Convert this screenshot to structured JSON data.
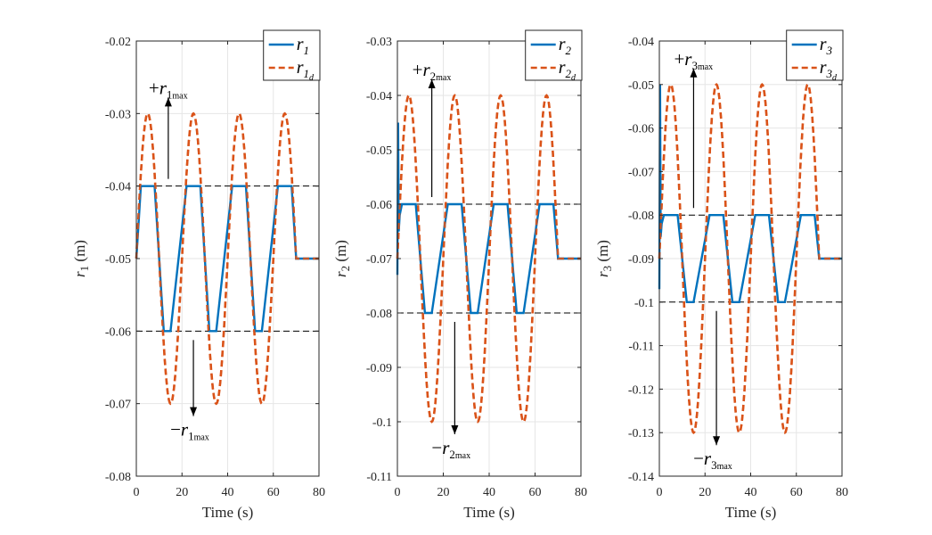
{
  "colors": {
    "actual": "#0072BD",
    "desired": "#D95319",
    "limit": "#000000",
    "grid": "#e6e6e6",
    "axis": "#262626"
  },
  "chart_data": [
    {
      "type": "line",
      "name": "r1",
      "xlabel": "Time (s)",
      "ylabel_main": "r",
      "ylabel_sub": "1",
      "ylabel_unit": "(m)",
      "xlim": [
        0,
        80
      ],
      "ylim": [
        -0.08,
        -0.02
      ],
      "xticks": [
        0,
        20,
        40,
        60,
        80
      ],
      "xtick_labels": [
        "0",
        "20",
        "40",
        "60",
        "80"
      ],
      "yticks": [
        -0.08,
        -0.07,
        -0.06,
        -0.05,
        -0.04,
        -0.03,
        -0.02
      ],
      "ytick_labels": [
        "-0.08",
        "-0.07",
        "-0.06",
        "-0.05",
        "-0.04",
        "-0.03",
        "-0.02"
      ],
      "grid": true,
      "legend": {
        "placement": "top-right",
        "entries": [
          {
            "base": "r",
            "sub": "1",
            "subsub": "",
            "style": "solid"
          },
          {
            "base": "r",
            "sub": "1",
            "subsub": "d",
            "style": "dashed"
          }
        ]
      },
      "limits": {
        "max": -0.04,
        "min": -0.06
      },
      "annotations": {
        "upper": {
          "sign": "+",
          "base": "r",
          "sub": "1",
          "subsub": "max",
          "arrow_x": 14
        },
        "lower": {
          "sign": "−",
          "base": "r",
          "sub": "1",
          "subsub": "max",
          "arrow_x": 25
        }
      },
      "series": [
        {
          "name": "r1",
          "style": "solid",
          "x": [
            0,
            1,
            2,
            8,
            12,
            15,
            22,
            28,
            32,
            35,
            42,
            48,
            52,
            55,
            62,
            68,
            70,
            80
          ],
          "y": [
            -0.05,
            -0.045,
            -0.04,
            -0.04,
            -0.06,
            -0.06,
            -0.04,
            -0.04,
            -0.06,
            -0.06,
            -0.04,
            -0.04,
            -0.06,
            -0.06,
            -0.04,
            -0.04,
            -0.05,
            -0.05
          ]
        },
        {
          "name": "r1d",
          "style": "dashed",
          "period": 20,
          "amplitude": 0.02,
          "center": -0.05,
          "t_start": 0,
          "t_end": 70,
          "final": -0.05,
          "peaks": [
            -0.03,
            -0.07,
            -0.03,
            -0.07,
            -0.03,
            -0.07,
            -0.03
          ]
        }
      ]
    },
    {
      "type": "line",
      "name": "r2",
      "xlabel": "Time (s)",
      "ylabel_main": "r",
      "ylabel_sub": "2",
      "ylabel_unit": "(m)",
      "xlim": [
        0,
        80
      ],
      "ylim": [
        -0.11,
        -0.03
      ],
      "xticks": [
        0,
        20,
        40,
        60,
        80
      ],
      "xtick_labels": [
        "0",
        "20",
        "40",
        "60",
        "80"
      ],
      "yticks": [
        -0.11,
        -0.1,
        -0.09,
        -0.08,
        -0.07,
        -0.06,
        -0.05,
        -0.04,
        -0.03
      ],
      "ytick_labels": [
        "-0.11",
        "-0.1",
        "-0.09",
        "-0.08",
        "-0.07",
        "-0.06",
        "-0.05",
        "-0.04",
        "-0.03"
      ],
      "grid": true,
      "legend": {
        "placement": "top-right",
        "entries": [
          {
            "base": "r",
            "sub": "2",
            "subsub": "",
            "style": "solid"
          },
          {
            "base": "r",
            "sub": "2",
            "subsub": "d",
            "style": "dashed"
          }
        ]
      },
      "limits": {
        "max": -0.06,
        "min": -0.08
      },
      "annotations": {
        "upper": {
          "sign": "+",
          "base": "r",
          "sub": "2",
          "subsub": "max",
          "arrow_x": 15
        },
        "lower": {
          "sign": "−",
          "base": "r",
          "sub": "2",
          "subsub": "max",
          "arrow_x": 25
        }
      },
      "series": [
        {
          "name": "r2",
          "style": "solid",
          "x": [
            0,
            0.3,
            0.6,
            1,
            2,
            8,
            12,
            15,
            22,
            28,
            32,
            35,
            42,
            48,
            52,
            55,
            62,
            68,
            70,
            80
          ],
          "y": [
            -0.073,
            -0.045,
            -0.065,
            -0.062,
            -0.06,
            -0.06,
            -0.08,
            -0.08,
            -0.06,
            -0.06,
            -0.08,
            -0.08,
            -0.06,
            -0.06,
            -0.08,
            -0.08,
            -0.06,
            -0.06,
            -0.07,
            -0.07
          ]
        },
        {
          "name": "r2d",
          "style": "dashed",
          "period": 20,
          "amplitude": 0.03,
          "center": -0.07,
          "t_start": 0,
          "t_end": 70,
          "final": -0.07,
          "peaks": [
            -0.04,
            -0.1,
            -0.04,
            -0.1,
            -0.04,
            -0.1,
            -0.04
          ]
        }
      ]
    },
    {
      "type": "line",
      "name": "r3",
      "xlabel": "Time (s)",
      "ylabel_main": "r",
      "ylabel_sub": "3",
      "ylabel_unit": "(m)",
      "xlim": [
        0,
        80
      ],
      "ylim": [
        -0.14,
        -0.04
      ],
      "xticks": [
        0,
        20,
        40,
        60,
        80
      ],
      "xtick_labels": [
        "0",
        "20",
        "40",
        "60",
        "80"
      ],
      "yticks": [
        -0.14,
        -0.13,
        -0.12,
        -0.11,
        -0.1,
        -0.09,
        -0.08,
        -0.07,
        -0.06,
        -0.05,
        -0.04
      ],
      "ytick_labels": [
        "-0.14",
        "-0.13",
        "-0.12",
        "-0.11",
        "-0.1",
        "-0.09",
        "-0.08",
        "-0.07",
        "-0.06",
        "-0.05",
        "-0.04"
      ],
      "grid": true,
      "legend": {
        "placement": "top-right",
        "entries": [
          {
            "base": "r",
            "sub": "3",
            "subsub": "",
            "style": "solid"
          },
          {
            "base": "r",
            "sub": "3",
            "subsub": "d",
            "style": "dashed"
          }
        ]
      },
      "limits": {
        "max": -0.08,
        "min": -0.1
      },
      "annotations": {
        "upper": {
          "sign": "+",
          "base": "r",
          "sub": "3",
          "subsub": "max",
          "arrow_x": 15
        },
        "lower": {
          "sign": "−",
          "base": "r",
          "sub": "3",
          "subsub": "max",
          "arrow_x": 25
        }
      },
      "series": [
        {
          "name": "r3",
          "style": "solid",
          "x": [
            0,
            0.3,
            0.6,
            1,
            2,
            8,
            12,
            15,
            22,
            28,
            32,
            35,
            42,
            48,
            52,
            55,
            62,
            68,
            70,
            80
          ],
          "y": [
            -0.097,
            -0.05,
            -0.085,
            -0.082,
            -0.08,
            -0.08,
            -0.1,
            -0.1,
            -0.08,
            -0.08,
            -0.1,
            -0.1,
            -0.08,
            -0.08,
            -0.1,
            -0.1,
            -0.08,
            -0.08,
            -0.09,
            -0.09
          ]
        },
        {
          "name": "r3d",
          "style": "dashed",
          "period": 20,
          "amplitude": 0.04,
          "center": -0.09,
          "t_start": 0,
          "t_end": 70,
          "final": -0.09,
          "peaks": [
            -0.05,
            -0.13,
            -0.05,
            -0.13,
            -0.05,
            -0.13,
            -0.05
          ]
        }
      ]
    }
  ]
}
